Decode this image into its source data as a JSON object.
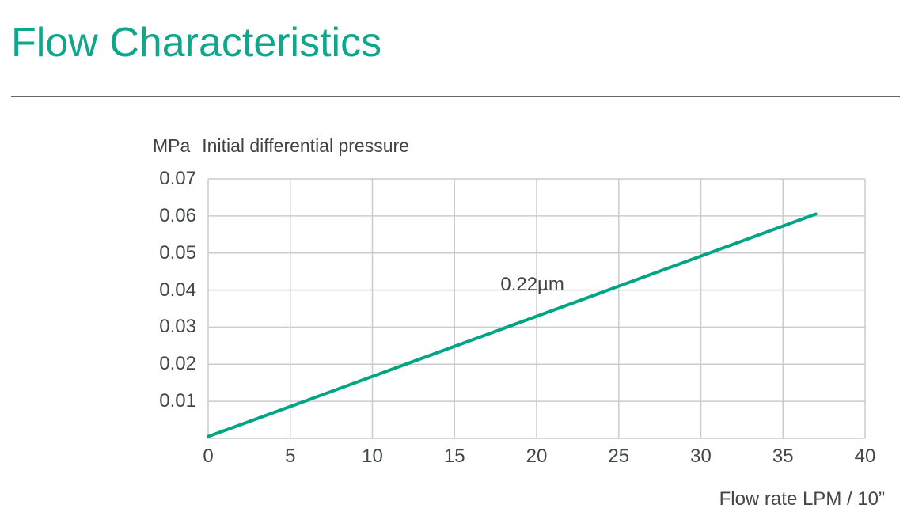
{
  "page": {
    "title": "Flow Characteristics"
  },
  "colors": {
    "accent_teal": "#0FA68C",
    "line_teal": "#00A583",
    "grid": "#CCCCCC",
    "text_dark": "#44474A",
    "divider": "#64666A"
  },
  "chart_data": {
    "type": "line",
    "title": "Initial differential pressure",
    "y_unit_label": "MPa",
    "xlabel": "Flow rate LPM / 10”",
    "ylabel": "MPa",
    "xlim": [
      0,
      40
    ],
    "ylim": [
      0,
      0.07
    ],
    "x_ticks": [
      "0",
      "5",
      "10",
      "15",
      "20",
      "25",
      "30",
      "35",
      "40"
    ],
    "y_ticks": [
      "0.01",
      "0.02",
      "0.03",
      "0.04",
      "0.05",
      "0.06",
      "0.07"
    ],
    "grid": true,
    "legend_position": "none",
    "series": [
      {
        "name": "0.22µm",
        "x": [
          0,
          37
        ],
        "y": [
          0.0005,
          0.0605
        ]
      }
    ],
    "annotation": {
      "text": "0.22µm",
      "x": 17.8,
      "y": 0.0415
    }
  }
}
